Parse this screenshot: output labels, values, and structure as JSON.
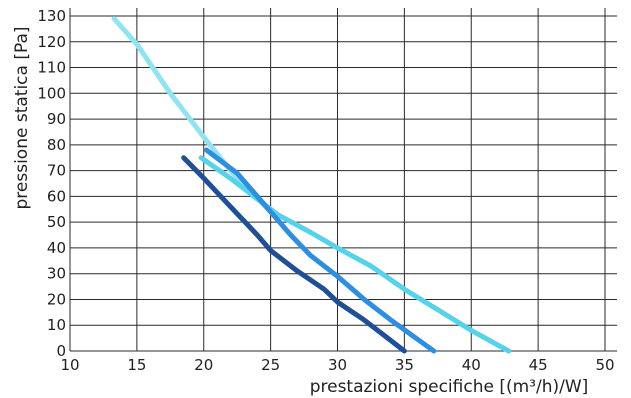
{
  "chart_data": {
    "type": "line",
    "title": "",
    "xlabel": "prestazioni specifiche [(m³/h)/W]",
    "ylabel": "pressione statica [Pa]",
    "xlim": [
      10,
      50
    ],
    "ylim": [
      0,
      130
    ],
    "grid": true,
    "x_ticks": [
      10,
      15,
      20,
      25,
      30,
      35,
      40,
      45,
      50
    ],
    "y_ticks": [
      0,
      10,
      20,
      30,
      40,
      50,
      60,
      70,
      80,
      90,
      100,
      110,
      120,
      130
    ],
    "series": [
      {
        "color": "#8ee4f0",
        "points": [
          [
            13.3,
            129
          ],
          [
            15,
            119
          ],
          [
            17.5,
            100
          ],
          [
            20,
            83
          ],
          [
            22,
            70
          ],
          [
            23.5,
            62
          ],
          [
            25,
            54
          ]
        ]
      },
      {
        "color": "#56d3ea",
        "points": [
          [
            19.8,
            75
          ],
          [
            22,
            67
          ],
          [
            23.5,
            61
          ],
          [
            25.5,
            53
          ],
          [
            28,
            46
          ],
          [
            30,
            40
          ],
          [
            32.5,
            33
          ],
          [
            35,
            24
          ],
          [
            37.5,
            16
          ],
          [
            40,
            8
          ],
          [
            42.8,
            0
          ]
        ]
      },
      {
        "color": "#2e8fe0",
        "points": [
          [
            20.2,
            78
          ],
          [
            22.5,
            69
          ],
          [
            25,
            54
          ],
          [
            26.5,
            45
          ],
          [
            28,
            37
          ],
          [
            30,
            29
          ],
          [
            32,
            20
          ],
          [
            34,
            12
          ],
          [
            37.2,
            0
          ]
        ]
      },
      {
        "color": "#1f4f96",
        "points": [
          [
            18.5,
            75
          ],
          [
            20,
            67
          ],
          [
            22,
            56
          ],
          [
            24,
            45
          ],
          [
            25,
            39
          ],
          [
            27,
            31
          ],
          [
            29,
            24
          ],
          [
            30,
            19
          ],
          [
            32,
            12
          ],
          [
            35,
            0
          ]
        ]
      }
    ]
  }
}
